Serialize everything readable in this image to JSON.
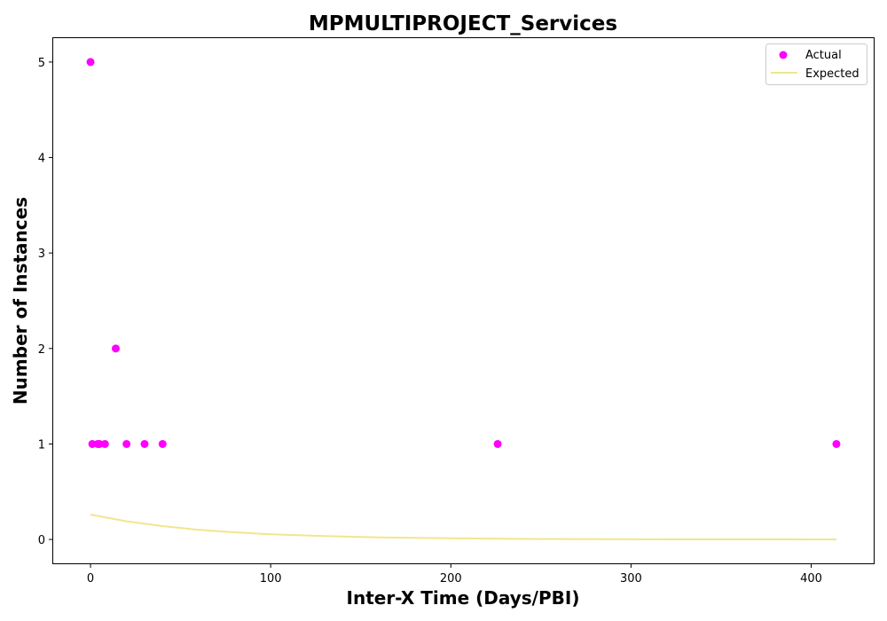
{
  "chart_data": {
    "type": "scatter",
    "title": "MPMULTIPROJECT_Services",
    "xlabel": "Inter-X Time (Days/PBI)",
    "ylabel": "Number of Instances",
    "xlim": [
      -20.7,
      434.7
    ],
    "ylim": [
      -0.25,
      5.25
    ],
    "xticks": [
      0,
      100,
      200,
      300,
      400
    ],
    "yticks": [
      0,
      1,
      2,
      3,
      4,
      5
    ],
    "grid": false,
    "legend_position": "top-right",
    "series": [
      {
        "name": "Actual",
        "kind": "scatter",
        "color": "#ff00ff",
        "points": [
          {
            "x": 0,
            "y": 5
          },
          {
            "x": 1,
            "y": 1
          },
          {
            "x": 4,
            "y": 1
          },
          {
            "x": 5,
            "y": 1
          },
          {
            "x": 8,
            "y": 1
          },
          {
            "x": 14,
            "y": 2
          },
          {
            "x": 20,
            "y": 1
          },
          {
            "x": 30,
            "y": 1
          },
          {
            "x": 40,
            "y": 1
          },
          {
            "x": 226,
            "y": 1
          },
          {
            "x": 414,
            "y": 1
          }
        ]
      },
      {
        "name": "Expected",
        "kind": "line",
        "color": "#f0e68c",
        "x": [
          0,
          20,
          40,
          60,
          80,
          100,
          130,
          160,
          200,
          250,
          300,
          350,
          414
        ],
        "y": [
          0.26,
          0.19,
          0.14,
          0.1,
          0.075,
          0.055,
          0.035,
          0.022,
          0.012,
          0.005,
          0.002,
          0.001,
          0.0
        ]
      }
    ]
  }
}
